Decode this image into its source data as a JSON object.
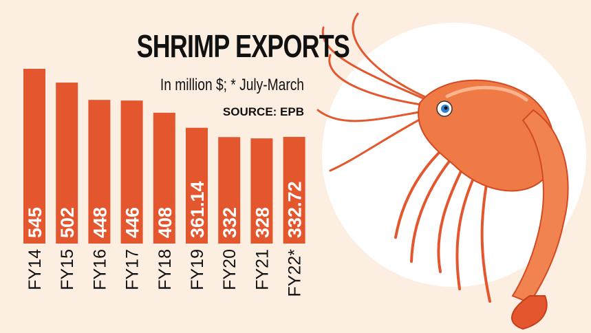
{
  "title": "SHRIMP EXPORTS",
  "subtitle": "In million $; * July-March",
  "source": "SOURCE: EPB",
  "colors": {
    "bar": "#e4572e",
    "background": "#fdeee2",
    "label": "#ffffff",
    "text": "#111111"
  },
  "illustration": "shrimp",
  "chart_data": {
    "type": "bar",
    "orientation": "vertical",
    "title": "SHRIMP EXPORTS",
    "subtitle": "In million $; * July-March",
    "categories": [
      "FY14",
      "FY15",
      "FY16",
      "FY17",
      "FY18",
      "FY19",
      "FY20",
      "FY21",
      "FY22*"
    ],
    "value_labels": [
      "545",
      "502",
      "448",
      "446",
      "408",
      "361.14",
      "332",
      "328",
      "332.72"
    ],
    "values": [
      545,
      502,
      448,
      446,
      408,
      361.14,
      332,
      328,
      332.72
    ],
    "ylim": [
      0,
      545
    ],
    "grid": false,
    "legend": "none"
  }
}
